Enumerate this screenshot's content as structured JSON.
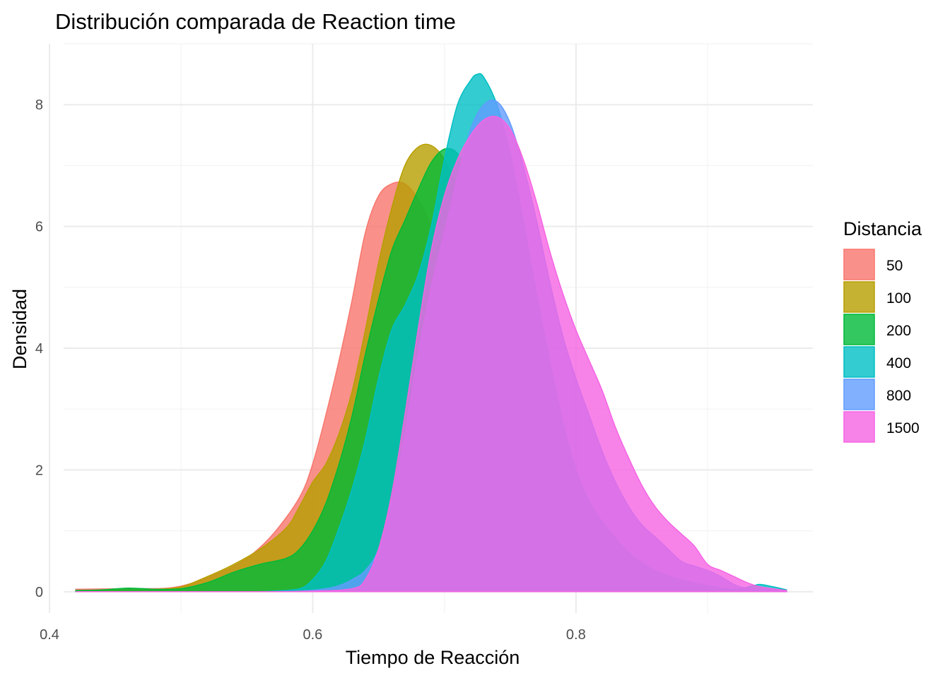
{
  "chart_data": {
    "type": "area",
    "title": "Distribución comparada de Reaction time",
    "xlabel": "Tiempo de Reacción",
    "ylabel": "Densidad",
    "xlim": [
      0.4,
      0.98
    ],
    "ylim": [
      -0.35,
      9.0
    ],
    "x_ticks": [
      0.4,
      0.6,
      0.8
    ],
    "x_tick_labels": [
      "0.4",
      "0.6",
      "0.8"
    ],
    "y_ticks": [
      0,
      2,
      4,
      6,
      8
    ],
    "y_tick_labels": [
      "0",
      "2",
      "4",
      "6",
      "8"
    ],
    "grid": true,
    "legend": {
      "title": "Distancia",
      "position": "right"
    },
    "series": [
      {
        "name": "50",
        "color": "#F8766D",
        "points": [
          [
            0.42,
            0.04
          ],
          [
            0.46,
            0.05
          ],
          [
            0.49,
            0.06
          ],
          [
            0.51,
            0.15
          ],
          [
            0.53,
            0.32
          ],
          [
            0.55,
            0.55
          ],
          [
            0.57,
            0.95
          ],
          [
            0.59,
            1.55
          ],
          [
            0.6,
            2.1
          ],
          [
            0.61,
            2.9
          ],
          [
            0.62,
            3.8
          ],
          [
            0.63,
            4.8
          ],
          [
            0.64,
            5.9
          ],
          [
            0.65,
            6.5
          ],
          [
            0.66,
            6.7
          ],
          [
            0.67,
            6.7
          ],
          [
            0.68,
            6.45
          ],
          [
            0.69,
            6.0
          ],
          [
            0.7,
            5.4
          ],
          [
            0.71,
            4.7
          ],
          [
            0.72,
            4.0
          ],
          [
            0.73,
            3.3
          ],
          [
            0.74,
            2.65
          ],
          [
            0.75,
            2.1
          ],
          [
            0.76,
            1.65
          ],
          [
            0.77,
            1.3
          ],
          [
            0.78,
            1.0
          ],
          [
            0.79,
            0.75
          ],
          [
            0.8,
            0.55
          ],
          [
            0.82,
            0.32
          ],
          [
            0.84,
            0.18
          ],
          [
            0.86,
            0.09
          ],
          [
            0.88,
            0.05
          ],
          [
            0.9,
            0.03
          ],
          [
            0.94,
            0.01
          ],
          [
            0.96,
            0.0
          ]
        ]
      },
      {
        "name": "100",
        "color": "#B79F00",
        "points": [
          [
            0.42,
            0.02
          ],
          [
            0.45,
            0.03
          ],
          [
            0.48,
            0.04
          ],
          [
            0.5,
            0.08
          ],
          [
            0.52,
            0.25
          ],
          [
            0.54,
            0.45
          ],
          [
            0.56,
            0.7
          ],
          [
            0.58,
            1.05
          ],
          [
            0.59,
            1.4
          ],
          [
            0.6,
            1.8
          ],
          [
            0.61,
            2.1
          ],
          [
            0.62,
            2.6
          ],
          [
            0.63,
            3.3
          ],
          [
            0.64,
            4.3
          ],
          [
            0.65,
            5.4
          ],
          [
            0.66,
            6.3
          ],
          [
            0.67,
            7.0
          ],
          [
            0.68,
            7.3
          ],
          [
            0.69,
            7.33
          ],
          [
            0.7,
            7.1
          ],
          [
            0.71,
            6.6
          ],
          [
            0.72,
            5.9
          ],
          [
            0.73,
            5.1
          ],
          [
            0.74,
            4.3
          ],
          [
            0.75,
            3.5
          ],
          [
            0.76,
            2.8
          ],
          [
            0.77,
            2.2
          ],
          [
            0.78,
            1.7
          ],
          [
            0.79,
            1.3
          ],
          [
            0.8,
            0.95
          ],
          [
            0.82,
            0.5
          ],
          [
            0.84,
            0.25
          ],
          [
            0.86,
            0.12
          ],
          [
            0.88,
            0.05
          ],
          [
            0.92,
            0.02
          ],
          [
            0.96,
            0.0
          ]
        ]
      },
      {
        "name": "200",
        "color": "#00BA38",
        "points": [
          [
            0.42,
            0.02
          ],
          [
            0.44,
            0.03
          ],
          [
            0.46,
            0.06
          ],
          [
            0.48,
            0.04
          ],
          [
            0.5,
            0.05
          ],
          [
            0.52,
            0.15
          ],
          [
            0.54,
            0.32
          ],
          [
            0.56,
            0.45
          ],
          [
            0.58,
            0.55
          ],
          [
            0.59,
            0.7
          ],
          [
            0.6,
            1.0
          ],
          [
            0.61,
            1.45
          ],
          [
            0.62,
            2.1
          ],
          [
            0.63,
            2.9
          ],
          [
            0.64,
            3.9
          ],
          [
            0.65,
            4.8
          ],
          [
            0.66,
            5.6
          ],
          [
            0.67,
            6.1
          ],
          [
            0.68,
            6.6
          ],
          [
            0.69,
            7.05
          ],
          [
            0.7,
            7.27
          ],
          [
            0.71,
            7.2
          ],
          [
            0.72,
            6.8
          ],
          [
            0.73,
            6.2
          ],
          [
            0.74,
            5.4
          ],
          [
            0.75,
            4.5
          ],
          [
            0.76,
            3.7
          ],
          [
            0.77,
            3.0
          ],
          [
            0.78,
            2.4
          ],
          [
            0.79,
            1.9
          ],
          [
            0.8,
            1.5
          ],
          [
            0.82,
            0.9
          ],
          [
            0.84,
            0.5
          ],
          [
            0.86,
            0.25
          ],
          [
            0.88,
            0.12
          ],
          [
            0.9,
            0.05
          ],
          [
            0.94,
            0.01
          ],
          [
            0.96,
            0.0
          ]
        ]
      },
      {
        "name": "400",
        "color": "#00BFC4",
        "points": [
          [
            0.42,
            0.0
          ],
          [
            0.5,
            0.0
          ],
          [
            0.55,
            0.0
          ],
          [
            0.57,
            0.01
          ],
          [
            0.59,
            0.05
          ],
          [
            0.6,
            0.2
          ],
          [
            0.61,
            0.5
          ],
          [
            0.62,
            1.05
          ],
          [
            0.63,
            1.7
          ],
          [
            0.64,
            2.5
          ],
          [
            0.65,
            3.5
          ],
          [
            0.66,
            4.3
          ],
          [
            0.67,
            4.7
          ],
          [
            0.68,
            5.2
          ],
          [
            0.69,
            6.0
          ],
          [
            0.7,
            7.1
          ],
          [
            0.71,
            8.0
          ],
          [
            0.72,
            8.4
          ],
          [
            0.725,
            8.5
          ],
          [
            0.73,
            8.45
          ],
          [
            0.74,
            8.0
          ],
          [
            0.75,
            7.2
          ],
          [
            0.76,
            6.1
          ],
          [
            0.77,
            4.9
          ],
          [
            0.78,
            3.8
          ],
          [
            0.79,
            2.8
          ],
          [
            0.8,
            2.0
          ],
          [
            0.81,
            1.5
          ],
          [
            0.82,
            1.15
          ],
          [
            0.84,
            0.65
          ],
          [
            0.86,
            0.35
          ],
          [
            0.88,
            0.2
          ],
          [
            0.9,
            0.1
          ],
          [
            0.92,
            0.04
          ],
          [
            0.935,
            0.1
          ],
          [
            0.94,
            0.12
          ],
          [
            0.95,
            0.08
          ],
          [
            0.96,
            0.03
          ]
        ]
      },
      {
        "name": "800",
        "color": "#619CFF",
        "points": [
          [
            0.42,
            0.0
          ],
          [
            0.55,
            0.0
          ],
          [
            0.59,
            0.01
          ],
          [
            0.61,
            0.05
          ],
          [
            0.62,
            0.1
          ],
          [
            0.63,
            0.2
          ],
          [
            0.64,
            0.35
          ],
          [
            0.65,
            0.7
          ],
          [
            0.66,
            1.5
          ],
          [
            0.67,
            2.6
          ],
          [
            0.68,
            3.9
          ],
          [
            0.69,
            5.0
          ],
          [
            0.7,
            5.9
          ],
          [
            0.71,
            6.8
          ],
          [
            0.72,
            7.6
          ],
          [
            0.73,
            8.0
          ],
          [
            0.74,
            8.05
          ],
          [
            0.75,
            7.7
          ],
          [
            0.76,
            7.0
          ],
          [
            0.77,
            6.1
          ],
          [
            0.78,
            5.1
          ],
          [
            0.79,
            4.2
          ],
          [
            0.8,
            3.5
          ],
          [
            0.81,
            2.9
          ],
          [
            0.82,
            2.3
          ],
          [
            0.83,
            1.8
          ],
          [
            0.84,
            1.4
          ],
          [
            0.85,
            1.1
          ],
          [
            0.86,
            0.9
          ],
          [
            0.87,
            0.7
          ],
          [
            0.88,
            0.5
          ],
          [
            0.89,
            0.42
          ],
          [
            0.9,
            0.35
          ],
          [
            0.91,
            0.25
          ],
          [
            0.92,
            0.12
          ],
          [
            0.93,
            0.06
          ],
          [
            0.96,
            0.02
          ]
        ]
      },
      {
        "name": "1500",
        "color": "#F564E3",
        "points": [
          [
            0.42,
            0.0
          ],
          [
            0.55,
            0.0
          ],
          [
            0.6,
            0.01
          ],
          [
            0.63,
            0.05
          ],
          [
            0.64,
            0.2
          ],
          [
            0.65,
            0.7
          ],
          [
            0.66,
            1.6
          ],
          [
            0.67,
            2.9
          ],
          [
            0.68,
            4.3
          ],
          [
            0.69,
            5.6
          ],
          [
            0.7,
            6.5
          ],
          [
            0.71,
            7.1
          ],
          [
            0.72,
            7.5
          ],
          [
            0.73,
            7.75
          ],
          [
            0.74,
            7.8
          ],
          [
            0.75,
            7.6
          ],
          [
            0.76,
            7.1
          ],
          [
            0.77,
            6.4
          ],
          [
            0.78,
            5.6
          ],
          [
            0.79,
            4.9
          ],
          [
            0.8,
            4.3
          ],
          [
            0.81,
            3.8
          ],
          [
            0.82,
            3.3
          ],
          [
            0.83,
            2.7
          ],
          [
            0.84,
            2.2
          ],
          [
            0.85,
            1.75
          ],
          [
            0.86,
            1.4
          ],
          [
            0.87,
            1.15
          ],
          [
            0.88,
            0.95
          ],
          [
            0.89,
            0.75
          ],
          [
            0.9,
            0.45
          ],
          [
            0.91,
            0.35
          ],
          [
            0.92,
            0.25
          ],
          [
            0.93,
            0.15
          ],
          [
            0.94,
            0.08
          ],
          [
            0.96,
            0.02
          ]
        ]
      }
    ]
  }
}
